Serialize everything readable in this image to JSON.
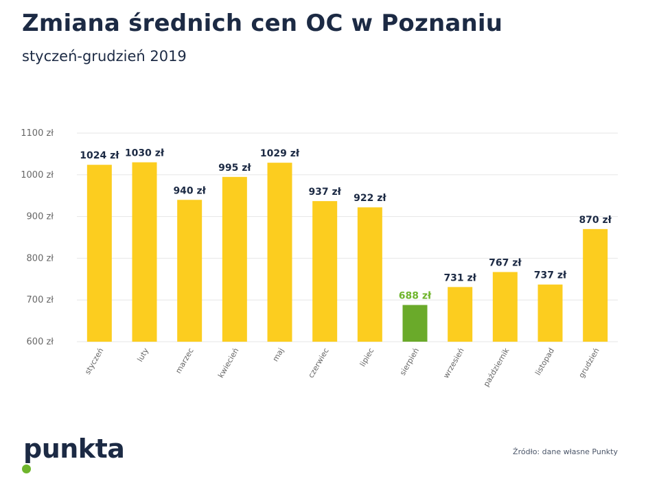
{
  "header": {
    "title": "Zmiana średnich cen OC w Poznaniu",
    "subtitle": "styczeń-grudzień 2019"
  },
  "footer": {
    "logo_text": "punkta",
    "source": "Źródło: dane własne Punkty"
  },
  "colors": {
    "bar_default": "#fccd1f",
    "bar_highlight": "#6aaa2a",
    "label_default": "#1c2a44",
    "label_highlight": "#6fb52c",
    "grid": "#e6e6e6",
    "axis_text": "#666666"
  },
  "chart_data": {
    "type": "bar",
    "categories": [
      "styczeń",
      "luty",
      "marzec",
      "kwiecień",
      "maj",
      "czerwiec",
      "lipiec",
      "sierpień",
      "wrzesień",
      "październik",
      "listopad",
      "grudzień"
    ],
    "values": [
      1024,
      1030,
      940,
      995,
      1029,
      937,
      922,
      688,
      731,
      767,
      737,
      870
    ],
    "value_labels": [
      "1024 zł",
      "1030 zł",
      "940 zł",
      "995 zł",
      "1029 zł",
      "937 zł",
      "922 zł",
      "688 zł",
      "731 zł",
      "767 zł",
      "737 zł",
      "870 zł"
    ],
    "highlight_category": "sierpień",
    "title": "Zmiana średnich cen OC w Poznaniu",
    "subtitle": "styczeń-grudzień 2019",
    "xlabel": "",
    "ylabel": "",
    "ylim": [
      600,
      1100
    ],
    "yticks": [
      600,
      700,
      800,
      900,
      1000,
      1100
    ],
    "ytick_labels": [
      "600 zł",
      "700 zł",
      "800 zł",
      "900 zł",
      "1000 zł",
      "1100 zł"
    ],
    "grid": true,
    "legend": "none"
  }
}
